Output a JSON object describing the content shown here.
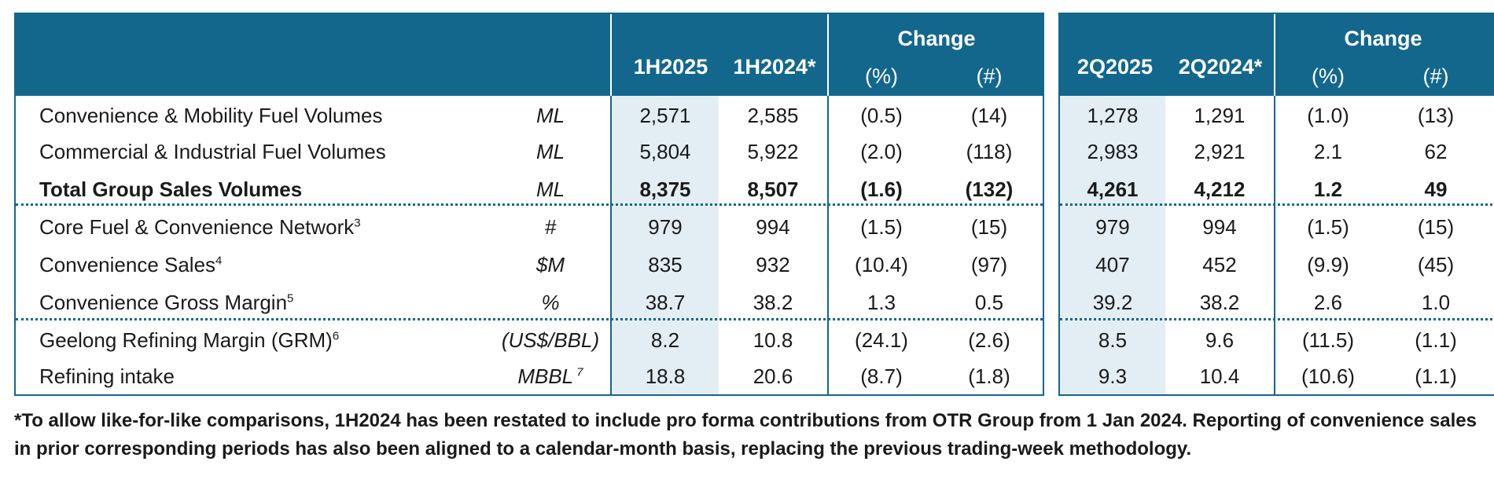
{
  "header": {
    "h1_2025": "1H2025",
    "h1_2024": "1H2024*",
    "q2_2025": "2Q2025",
    "q2_2024": "2Q2024*",
    "change": "Change",
    "pct": "(%)",
    "num": "(#)"
  },
  "rows": [
    {
      "label": "Convenience & Mobility Fuel Volumes",
      "sup": "",
      "unit": "ML",
      "bold": false,
      "h1_2025": "2,571",
      "h1_2024": "2,585",
      "h_pct": "(0.5)",
      "h_num": "(14)",
      "q_2025": "1,278",
      "q_2024": "1,291",
      "q_pct": "(1.0)",
      "q_num": "(13)"
    },
    {
      "label": "Commercial & Industrial Fuel Volumes",
      "sup": "",
      "unit": "ML",
      "bold": false,
      "h1_2025": "5,804",
      "h1_2024": "5,922",
      "h_pct": "(2.0)",
      "h_num": "(118)",
      "q_2025": "2,983",
      "q_2024": "2,921",
      "q_pct": "2.1",
      "q_num": "62"
    },
    {
      "label": "Total Group Sales Volumes",
      "sup": "",
      "unit": "ML",
      "bold": true,
      "h1_2025": "8,375",
      "h1_2024": "8,507",
      "h_pct": "(1.6)",
      "h_num": "(132)",
      "q_2025": "4,261",
      "q_2024": "4,212",
      "q_pct": "1.2",
      "q_num": "49"
    },
    {
      "label": "Core Fuel & Convenience Network",
      "sup": "3",
      "unit": "#",
      "bold": false,
      "h1_2025": "979",
      "h1_2024": "994",
      "h_pct": "(1.5)",
      "h_num": "(15)",
      "q_2025": "979",
      "q_2024": "994",
      "q_pct": "(1.5)",
      "q_num": "(15)"
    },
    {
      "label": "Convenience Sales",
      "sup": "4",
      "unit": "$M",
      "bold": false,
      "h1_2025": "835",
      "h1_2024": "932",
      "h_pct": "(10.4)",
      "h_num": "(97)",
      "q_2025": "407",
      "q_2024": "452",
      "q_pct": "(9.9)",
      "q_num": "(45)"
    },
    {
      "label": "Convenience Gross Margin",
      "sup": "5",
      "unit": "%",
      "bold": false,
      "h1_2025": "38.7",
      "h1_2024": "38.2",
      "h_pct": "1.3",
      "h_num": "0.5",
      "q_2025": "39.2",
      "q_2024": "38.2",
      "q_pct": "2.6",
      "q_num": "1.0"
    },
    {
      "label": "Geelong Refining Margin (GRM)",
      "sup": "6",
      "unit": "(US$/BBL)",
      "bold": false,
      "h1_2025": "8.2",
      "h1_2024": "10.8",
      "h_pct": "(24.1)",
      "h_num": "(2.6)",
      "q_2025": "8.5",
      "q_2024": "9.6",
      "q_pct": "(11.5)",
      "q_num": "(1.1)"
    },
    {
      "label": "Refining intake",
      "sup": "",
      "unit": "MBBL",
      "unit_sup": "7",
      "bold": false,
      "h1_2025": "18.8",
      "h1_2024": "20.6",
      "h_pct": "(8.7)",
      "h_num": "(1.8)",
      "q_2025": "9.3",
      "q_2024": "10.4",
      "q_pct": "(10.6)",
      "q_num": "(1.1)"
    }
  ],
  "footnote": "*To allow like-for-like comparisons, 1H2024 has been restated to include pro forma contributions from OTR Group from 1 Jan 2024. Reporting of convenience sales in prior corresponding periods has also been aligned to a calendar-month basis, replacing the previous trading-week methodology.",
  "colors": {
    "header_bg": "#13678d",
    "shade": "#e3eef4"
  }
}
